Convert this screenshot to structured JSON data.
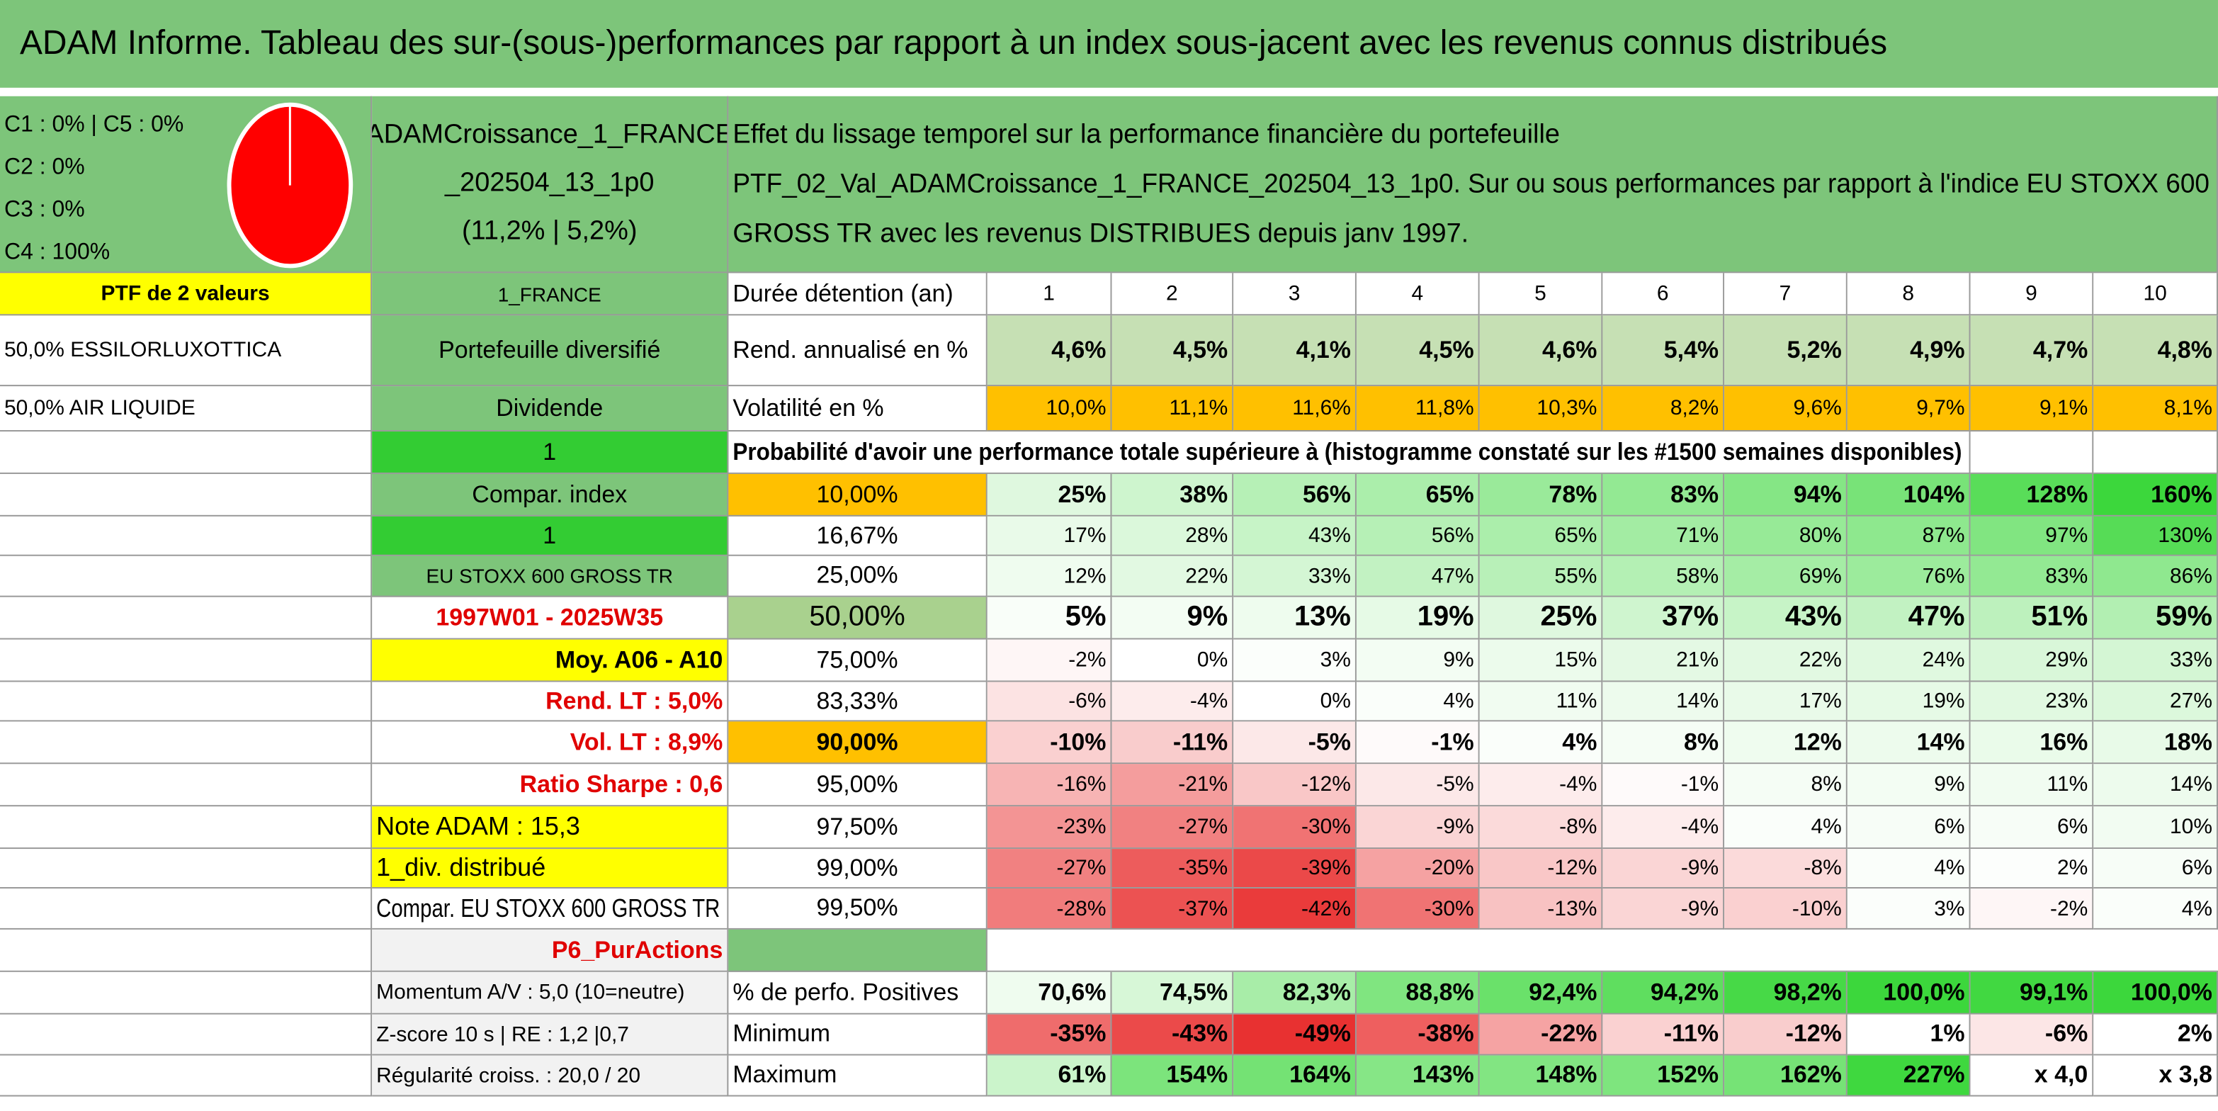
{
  "title": "ADAM Informe. Tableau des sur-(sous-)performances par rapport à un index sous-jacent avec les revenus connus distribués",
  "summary": [
    "C1 : 0% | C5 : 0%",
    "C2 : 0%",
    "C3 : 0%",
    "C4 : 100%"
  ],
  "portfolio": [
    "ADAMCroissance_1_FRANCE",
    "_202504_13_1p0",
    "(11,2% | 5,2%)"
  ],
  "description": [
    "Effet du lissage temporel sur la performance financière du portefeuille",
    "PTF_02_Val_ADAMCroissance_1_FRANCE_202504_13_1p0. Sur ou sous performances par rapport à l'indice EU STOXX 600",
    "GROSS TR avec les revenus DISTRIBUES depuis janv 1997."
  ],
  "rows": [
    {
      "a": "PTF de 2 valeurs",
      "b": "1_FRANCE",
      "c": "Durée détention (an)",
      "cells": [
        "1",
        "2",
        "3",
        "4",
        "5",
        "6",
        "7",
        "8",
        "9",
        "10"
      ]
    },
    {
      "a": "50,0% ESSILORLUXOTTICA",
      "b": "Portefeuille diversifié",
      "c": "Rend. annualisé en %",
      "cells": [
        "4,6%",
        "4,5%",
        "4,1%",
        "4,5%",
        "4,6%",
        "5,4%",
        "5,2%",
        "4,9%",
        "4,7%",
        "4,8%"
      ]
    },
    {
      "a": "50,0% AIR LIQUIDE",
      "b": "Dividende",
      "c": "Volatilité en %",
      "cells": [
        "10,0%",
        "11,1%",
        "11,6%",
        "11,8%",
        "10,3%",
        "8,2%",
        "9,6%",
        "9,7%",
        "9,1%",
        "8,1%"
      ]
    },
    {
      "b": "1",
      "note": "Probabilité d'avoir une performance totale supérieure à (histogramme constaté sur les #1500 semaines disponibles)"
    },
    {
      "b": "Compar. index",
      "c": "10,00%",
      "cells": [
        "25%",
        "38%",
        "56%",
        "65%",
        "78%",
        "83%",
        "94%",
        "104%",
        "128%",
        "160%"
      ]
    },
    {
      "b": "1",
      "c": "16,67%",
      "cells": [
        "17%",
        "28%",
        "43%",
        "56%",
        "65%",
        "71%",
        "80%",
        "87%",
        "97%",
        "130%"
      ]
    },
    {
      "b": "EU STOXX 600 GROSS TR",
      "c": "25,00%",
      "cells": [
        "12%",
        "22%",
        "33%",
        "47%",
        "55%",
        "58%",
        "69%",
        "76%",
        "83%",
        "86%"
      ]
    },
    {
      "b": "1997W01 - 2025W35",
      "c": "50,00%",
      "cells": [
        "5%",
        "9%",
        "13%",
        "19%",
        "25%",
        "37%",
        "43%",
        "47%",
        "51%",
        "59%"
      ]
    },
    {
      "b": "Moy. A06 - A10",
      "c": "75,00%",
      "cells": [
        "-2%",
        "0%",
        "3%",
        "9%",
        "15%",
        "21%",
        "22%",
        "24%",
        "29%",
        "33%"
      ]
    },
    {
      "b": "Rend. LT : 5,0%",
      "c": "83,33%",
      "cells": [
        "-6%",
        "-4%",
        "0%",
        "4%",
        "11%",
        "14%",
        "17%",
        "19%",
        "23%",
        "27%"
      ]
    },
    {
      "b": "Vol. LT : 8,9%",
      "c": "90,00%",
      "cells": [
        "-10%",
        "-11%",
        "-5%",
        "-1%",
        "4%",
        "8%",
        "12%",
        "14%",
        "16%",
        "18%"
      ]
    },
    {
      "b": "Ratio Sharpe : 0,6",
      "c": "95,00%",
      "cells": [
        "-16%",
        "-21%",
        "-12%",
        "-5%",
        "-4%",
        "-1%",
        "8%",
        "9%",
        "11%",
        "14%"
      ]
    },
    {
      "b": "Note ADAM : 15,3",
      "c": "97,50%",
      "cells": [
        "-23%",
        "-27%",
        "-30%",
        "-9%",
        "-8%",
        "-4%",
        "4%",
        "6%",
        "6%",
        "10%"
      ]
    },
    {
      "b": "1_div. distribué",
      "c": "99,00%",
      "cells": [
        "-27%",
        "-35%",
        "-39%",
        "-20%",
        "-12%",
        "-9%",
        "-8%",
        "4%",
        "2%",
        "6%"
      ]
    },
    {
      "b": "Compar. EU STOXX 600 GROSS TR",
      "c": "99,50%",
      "cells": [
        "-28%",
        "-37%",
        "-42%",
        "-30%",
        "-13%",
        "-9%",
        "-10%",
        "3%",
        "-2%",
        "4%"
      ]
    },
    {
      "b": "P6_PurActions"
    },
    {
      "b": "Momentum A/V : 5,0 (10=neutre)",
      "c": "% de perfo. Positives",
      "cells": [
        "70,6%",
        "74,5%",
        "82,3%",
        "88,8%",
        "92,4%",
        "94,2%",
        "98,2%",
        "100,0%",
        "99,1%",
        "100,0%"
      ]
    },
    {
      "b": "Z-score 10 s | RE : 1,2 |0,7",
      "c": "Minimum",
      "cells": [
        "-35%",
        "-43%",
        "-49%",
        "-38%",
        "-22%",
        "-11%",
        "-12%",
        "1%",
        "-6%",
        "2%"
      ]
    },
    {
      "b": "Régularité croiss. : 20,0 / 20",
      "c": "Maximum",
      "cells": [
        "61%",
        "154%",
        "164%",
        "143%",
        "148%",
        "152%",
        "162%",
        "227%",
        "x 4,0",
        "x 3,8"
      ]
    }
  ]
}
